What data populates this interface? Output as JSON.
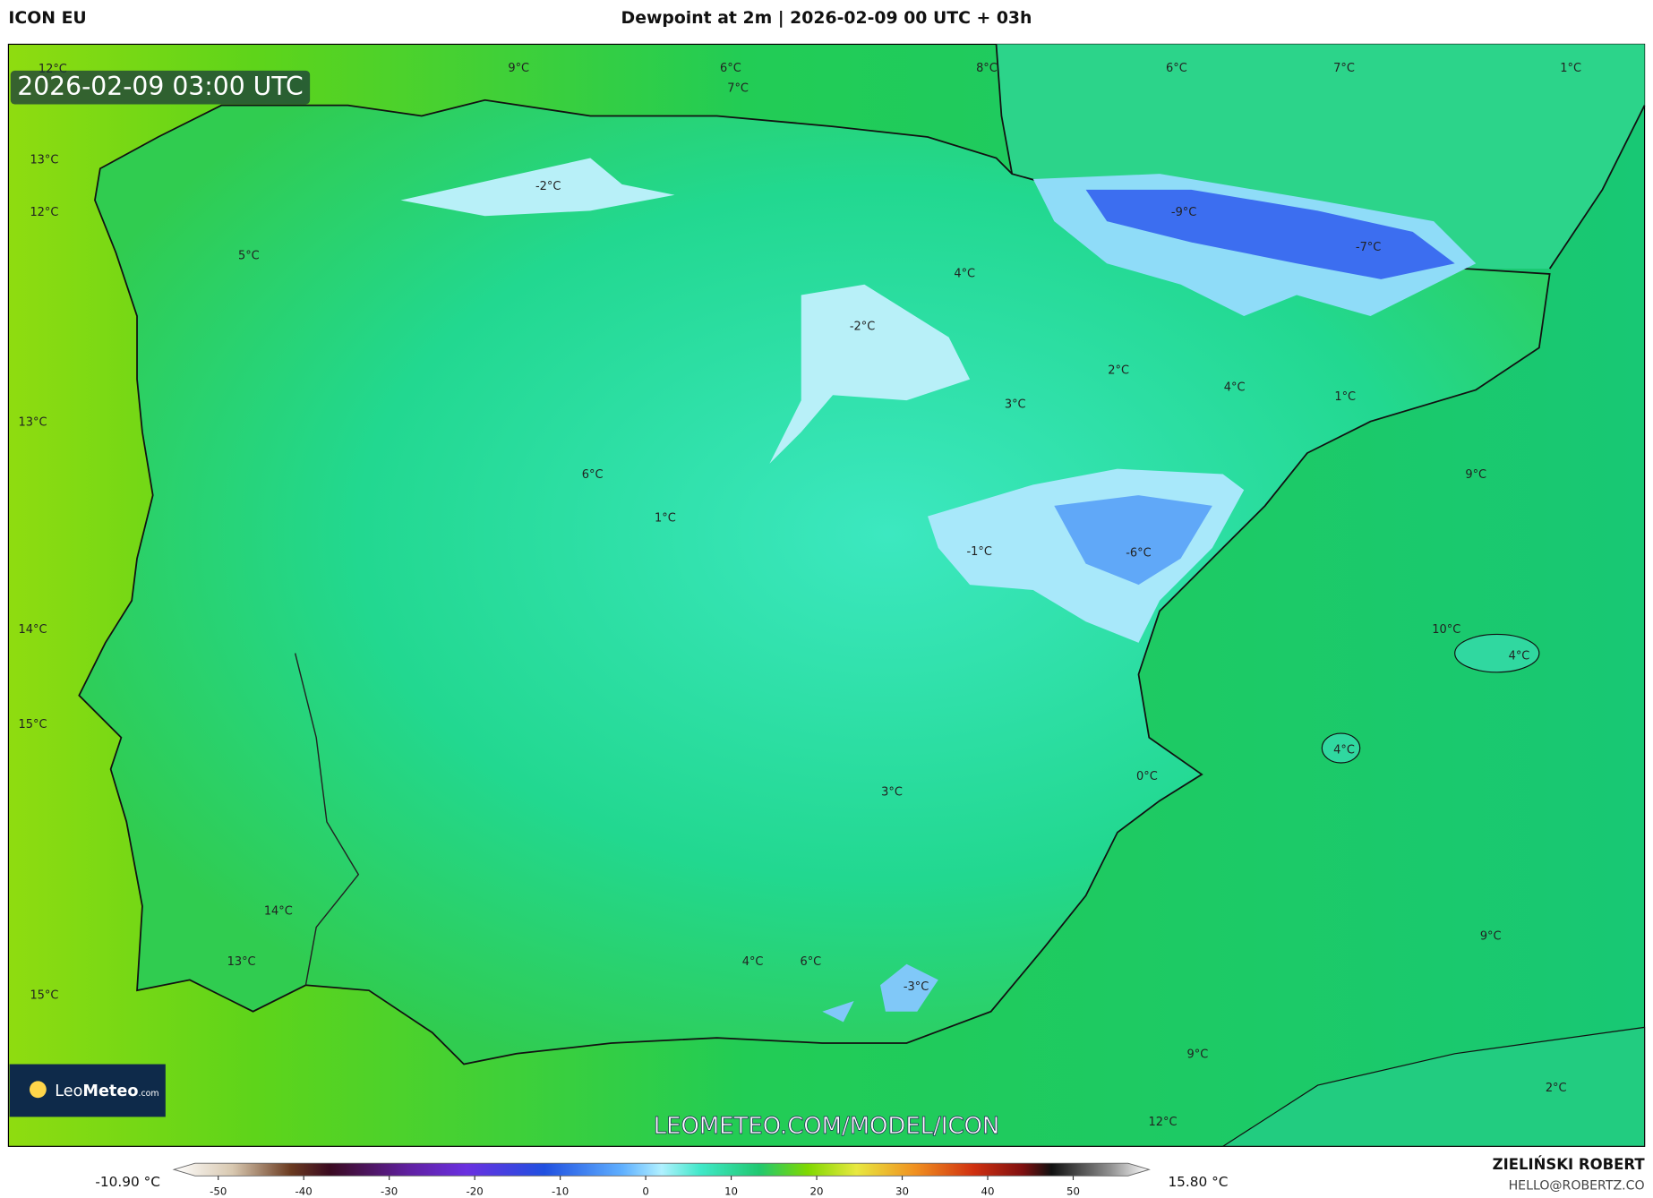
{
  "header": {
    "model": "ICON EU",
    "title": "Dewpoint at 2m | 2026-02-09 00 UTC + 03h"
  },
  "timestamp": "2026-02-09 03:00 UTC",
  "map_labels": [
    "12°C",
    "9°C",
    "6°C",
    "7°C",
    "8°C",
    "6°C",
    "7°C",
    "1°C",
    "13°C",
    "12°C",
    "5°C",
    "-2°C",
    "-9°C",
    "-7°C",
    "4°C",
    "-2°C",
    "2°C",
    "4°C",
    "3°C",
    "1°C",
    "13°C",
    "9°C",
    "6°C",
    "1°C",
    "-1°C",
    "-6°C",
    "14°C",
    "10°C",
    "4°C",
    "15°C",
    "4°C",
    "0°C",
    "3°C",
    "14°C",
    "9°C",
    "13°C",
    "4°C",
    "6°C",
    "-3°C",
    "15°C",
    "9°C",
    "2°C",
    "12°C"
  ],
  "watermark": "LEOMETEO.COM/MODEL/ICON",
  "logo": {
    "leo": "Leo",
    "meteo": "Meteo",
    "suffix": ".com"
  },
  "colorbar": {
    "min_label": "-10.90 °C",
    "max_label": "15.80 °C",
    "ticks": [
      -50,
      -40,
      -30,
      -20,
      -10,
      0,
      10,
      20,
      30,
      40,
      50
    ]
  },
  "footer": {
    "author": "ZIELIŃSKI ROBERT",
    "email": "HELLO@ROBERTZ.CO"
  }
}
